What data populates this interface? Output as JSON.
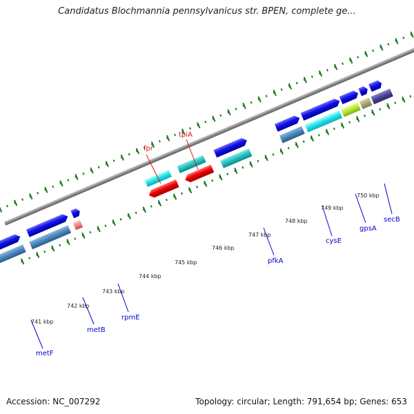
{
  "title": "Candidatus Blochmannia pennsylvanicus str. BPEN, complete ge...",
  "footer": {
    "accession": "Accession: NC_007292",
    "topology": "Topology: circular; Length: 791,654 bp; Genes: 653"
  },
  "colors": {
    "tick": "#1a7a1a",
    "forward_label": "#e01010",
    "reverse_label": "#0000cc",
    "backbone": "#888888"
  },
  "kbp_labels": [
    "741 kbp",
    "742 kbp",
    "743 kbp",
    "744 kbp",
    "745 kbp",
    "746 kbp",
    "747 kbp",
    "748 kbp",
    "749 kbp",
    "750 kbp"
  ],
  "gene_labels": {
    "fpr": "fpr",
    "tpiA": "tpiA",
    "metF": "metF",
    "metB": "metB",
    "rpmE": "rpmE",
    "pfkA": "pfkA",
    "cysE": "cysE",
    "gpsA": "gpsA",
    "secB": "secB"
  }
}
